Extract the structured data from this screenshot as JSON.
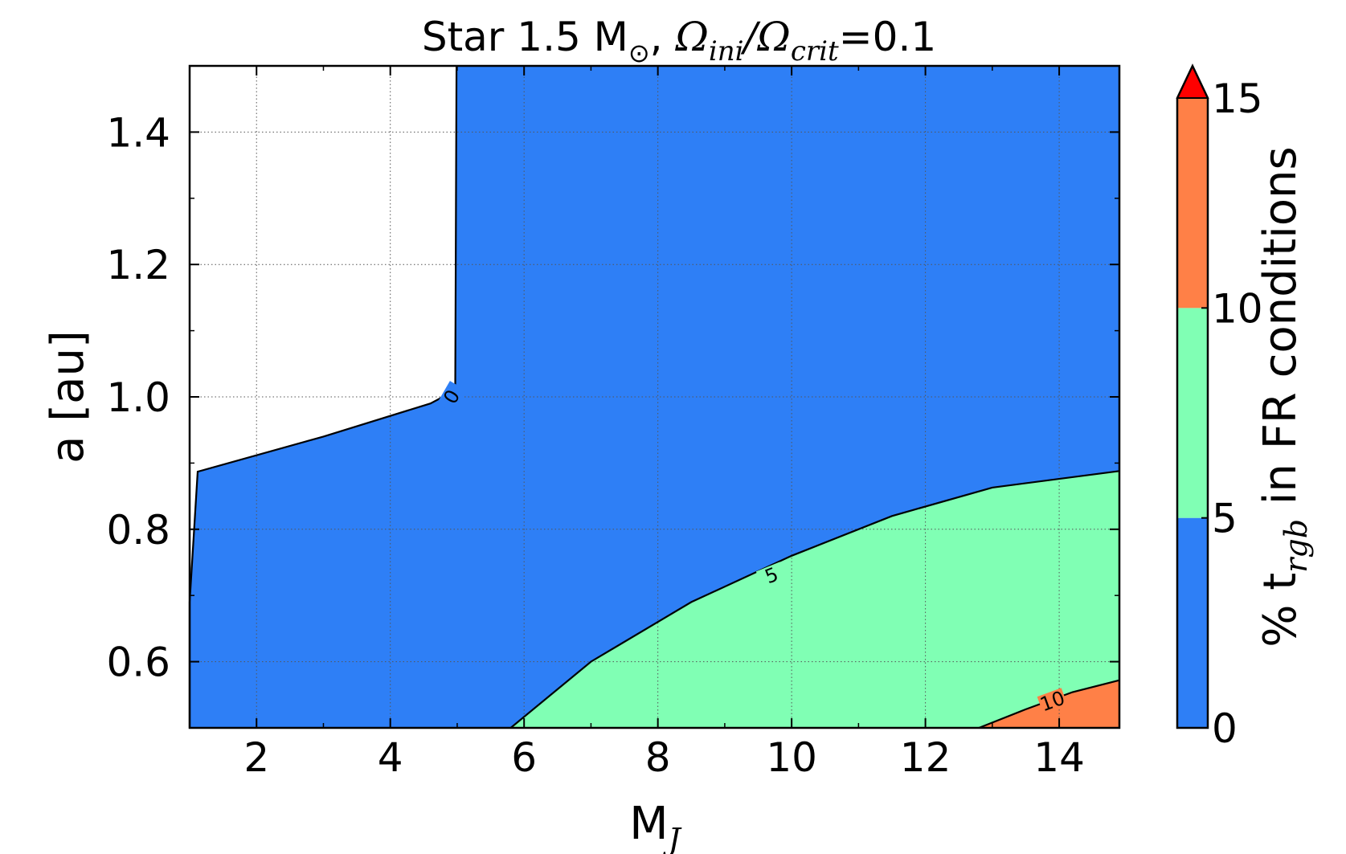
{
  "chart_data": {
    "type": "contour",
    "title": {
      "prefix": "Star 1.5 M",
      "sun_symbol": "⊙",
      "comma": ",",
      "omega": "Ω",
      "omega_sub1": "ini",
      "slash": "/",
      "omega_sub2": "crit",
      "equals": "=",
      "value": "0.1"
    },
    "xlabel": {
      "main": "M",
      "sub": "J"
    },
    "ylabel": "a [au]",
    "xlim": [
      1,
      14.9
    ],
    "ylim": [
      0.5,
      1.5
    ],
    "xticks": [
      2,
      4,
      6,
      8,
      10,
      12,
      14
    ],
    "yticks": [
      0.6,
      0.8,
      1.0,
      1.2,
      1.4
    ],
    "xtick_labels": [
      "2",
      "4",
      "6",
      "8",
      "10",
      "12",
      "14"
    ],
    "ytick_labels": [
      "0.6",
      "0.8",
      "1.0",
      "1.2",
      "1.4"
    ],
    "grid": true,
    "colorbar": {
      "label_prefix": "% t",
      "label_sub": "rgb",
      "label_suffix": " in FR conditions",
      "ticks": [
        "0",
        "5",
        "10",
        "15"
      ],
      "levels": [
        0,
        5,
        10,
        15
      ],
      "colors": [
        "#2e7ff6",
        "#80ffb4",
        "#ff8047"
      ],
      "extend_color": "#ff0000"
    },
    "contour_labels": [
      "0",
      "5",
      "10"
    ],
    "regions": [
      {
        "level": "0-5",
        "color": "#2e7ff6",
        "boundary_points": [
          [
            1.0,
            0.5
          ],
          [
            1.0,
            0.69
          ],
          [
            1.12,
            0.887
          ],
          [
            3.0,
            0.94
          ],
          [
            4.6,
            0.99
          ],
          [
            4.97,
            1.01
          ],
          [
            4.99,
            1.5
          ],
          [
            14.9,
            1.5
          ],
          [
            14.9,
            0.5
          ]
        ]
      },
      {
        "level": "5-10",
        "color": "#80ffb4",
        "boundary_points": [
          [
            5.8,
            0.5
          ],
          [
            7.0,
            0.6
          ],
          [
            8.5,
            0.69
          ],
          [
            10.0,
            0.76
          ],
          [
            11.5,
            0.82
          ],
          [
            13.0,
            0.863
          ],
          [
            14.9,
            0.888
          ],
          [
            14.9,
            0.5
          ]
        ]
      },
      {
        "level": "10-15",
        "color": "#ff8047",
        "boundary_points": [
          [
            12.8,
            0.5
          ],
          [
            13.5,
            0.528
          ],
          [
            14.2,
            0.554
          ],
          [
            14.9,
            0.572
          ],
          [
            14.9,
            0.5
          ]
        ]
      }
    ]
  }
}
